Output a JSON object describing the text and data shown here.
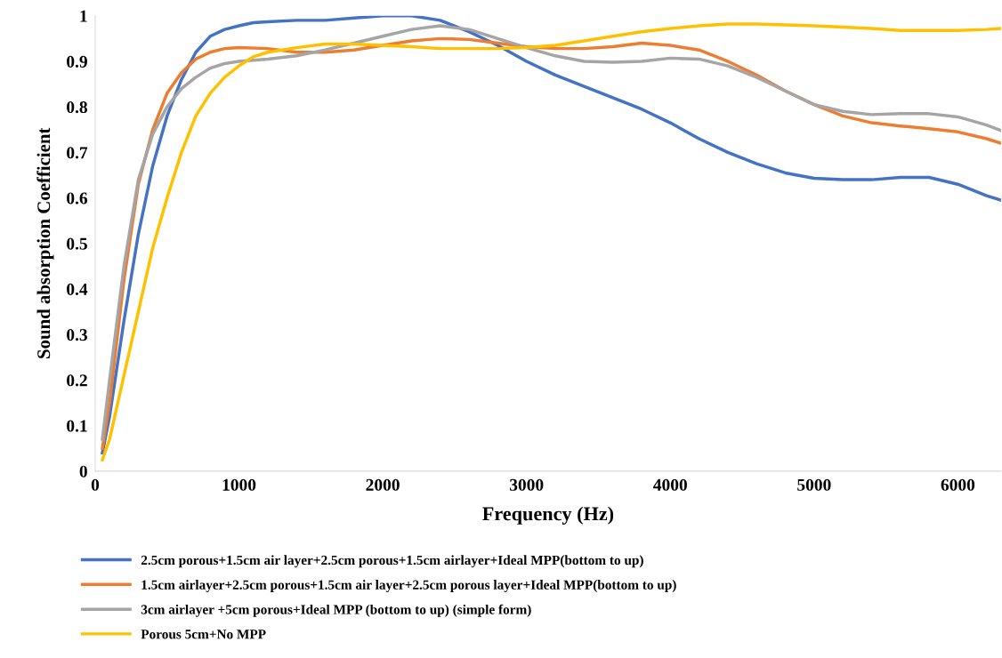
{
  "chart_data": {
    "type": "line",
    "xlabel": "Frequency (Hz)",
    "ylabel": "Sound absorption Coefficient",
    "xlim": [
      0,
      6300
    ],
    "xticks": [
      0,
      1000,
      2000,
      3000,
      4000,
      5000,
      6000
    ],
    "ylim": [
      0,
      1
    ],
    "yticks": [
      0,
      0.1,
      0.2,
      0.3,
      0.4,
      0.5,
      0.6,
      0.7,
      0.8,
      0.9,
      1
    ],
    "grid": false,
    "legend": "bottom",
    "marker": "none",
    "line_style": "solid",
    "series": [
      {
        "name": "2.5cm porous+1.5cm air layer+2.5cm porous+1.5cm airlayer+Ideal MPP(bottom to up)",
        "color": "#4472c4",
        "x": [
          50,
          100,
          200,
          300,
          400,
          500,
          600,
          700,
          800,
          900,
          1000,
          1100,
          1200,
          1400,
          1600,
          1800,
          2000,
          2200,
          2400,
          2600,
          2800,
          3000,
          3200,
          3400,
          3600,
          3800,
          4000,
          4200,
          4400,
          4600,
          4800,
          5000,
          5200,
          5400,
          5600,
          5800,
          6000,
          6200,
          6300
        ],
        "values": [
          0.04,
          0.12,
          0.33,
          0.52,
          0.67,
          0.78,
          0.86,
          0.92,
          0.955,
          0.97,
          0.978,
          0.985,
          0.987,
          0.99,
          0.99,
          0.995,
          1.0,
          1.0,
          0.99,
          0.965,
          0.935,
          0.9,
          0.87,
          0.845,
          0.82,
          0.795,
          0.765,
          0.73,
          0.7,
          0.675,
          0.655,
          0.643,
          0.64,
          0.64,
          0.645,
          0.645,
          0.63,
          0.605,
          0.595
        ]
      },
      {
        "name": "1.5cm airlayer+2.5cm porous+1.5cm air layer+2.5cm porous layer+Ideal MPP(bottom to up)",
        "color": "#ed7d31",
        "x": [
          50,
          100,
          200,
          300,
          400,
          500,
          600,
          700,
          800,
          900,
          1000,
          1200,
          1400,
          1600,
          1800,
          2000,
          2200,
          2400,
          2600,
          2800,
          3000,
          3200,
          3400,
          3600,
          3800,
          4000,
          4200,
          4400,
          4600,
          4800,
          5000,
          5200,
          5400,
          5600,
          5800,
          6000,
          6200,
          6300
        ],
        "values": [
          0.05,
          0.15,
          0.42,
          0.63,
          0.75,
          0.83,
          0.875,
          0.905,
          0.92,
          0.928,
          0.93,
          0.928,
          0.92,
          0.92,
          0.925,
          0.935,
          0.945,
          0.95,
          0.948,
          0.94,
          0.932,
          0.928,
          0.928,
          0.932,
          0.94,
          0.935,
          0.925,
          0.9,
          0.87,
          0.835,
          0.805,
          0.78,
          0.765,
          0.758,
          0.752,
          0.745,
          0.73,
          0.72
        ]
      },
      {
        "name": "3cm airlayer +5cm porous+Ideal MPP (bottom to up) (simple form)",
        "color": "#a5a5a5",
        "x": [
          50,
          100,
          200,
          300,
          400,
          500,
          600,
          700,
          800,
          900,
          1000,
          1200,
          1400,
          1600,
          1800,
          2000,
          2200,
          2400,
          2600,
          2800,
          3000,
          3200,
          3400,
          3600,
          3800,
          4000,
          4200,
          4400,
          4600,
          4800,
          5000,
          5200,
          5400,
          5600,
          5800,
          6000,
          6200,
          6300
        ],
        "values": [
          0.07,
          0.2,
          0.45,
          0.64,
          0.74,
          0.8,
          0.84,
          0.865,
          0.885,
          0.895,
          0.9,
          0.905,
          0.912,
          0.925,
          0.94,
          0.955,
          0.97,
          0.978,
          0.97,
          0.95,
          0.93,
          0.912,
          0.9,
          0.898,
          0.9,
          0.907,
          0.905,
          0.89,
          0.865,
          0.835,
          0.805,
          0.79,
          0.783,
          0.785,
          0.785,
          0.778,
          0.76,
          0.748
        ]
      },
      {
        "name": "Porous 5cm+No MPP",
        "color": "#ffc000",
        "x": [
          50,
          100,
          200,
          300,
          400,
          500,
          600,
          700,
          800,
          900,
          1000,
          1100,
          1200,
          1400,
          1600,
          1800,
          2000,
          2200,
          2400,
          2600,
          2800,
          3000,
          3200,
          3400,
          3600,
          3800,
          4000,
          4200,
          4400,
          4600,
          4800,
          5000,
          5200,
          5400,
          5600,
          5800,
          6000,
          6200,
          6300
        ],
        "values": [
          0.025,
          0.07,
          0.21,
          0.35,
          0.49,
          0.6,
          0.7,
          0.78,
          0.83,
          0.865,
          0.89,
          0.91,
          0.92,
          0.93,
          0.938,
          0.938,
          0.935,
          0.932,
          0.928,
          0.928,
          0.928,
          0.93,
          0.935,
          0.945,
          0.955,
          0.965,
          0.972,
          0.978,
          0.982,
          0.982,
          0.98,
          0.978,
          0.975,
          0.972,
          0.968,
          0.968,
          0.968,
          0.97,
          0.972
        ]
      }
    ]
  }
}
